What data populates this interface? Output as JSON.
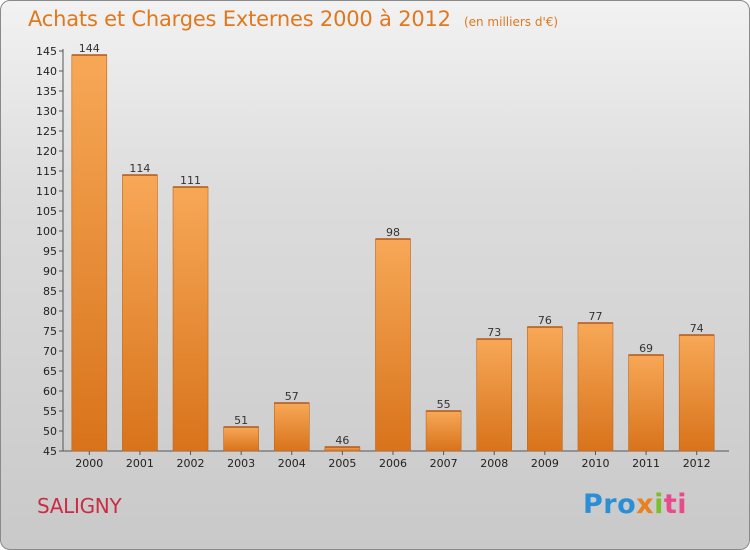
{
  "header": {
    "title": "Achats et Charges Externes 2000 à 2012",
    "subtitle": "(en milliers d'€)"
  },
  "footer": {
    "city": "SALIGNY",
    "logo_parts": [
      "Pro",
      "x",
      "i",
      "ti"
    ]
  },
  "colors": {
    "bar_light": "#f7a857",
    "bar_dark": "#d8731b",
    "title": "#e0781e",
    "city": "#cc2b44"
  },
  "chart_data": {
    "type": "bar",
    "title": "Achats et Charges Externes 2000 à 2012",
    "subtitle": "(en milliers d'€)",
    "categories": [
      "2000",
      "2001",
      "2002",
      "2003",
      "2004",
      "2005",
      "2006",
      "2007",
      "2008",
      "2009",
      "2010",
      "2011",
      "2012"
    ],
    "values": [
      144,
      114,
      111,
      51,
      57,
      46,
      98,
      55,
      73,
      76,
      77,
      69,
      74
    ],
    "ylim": [
      45,
      145
    ],
    "yticks": [
      45,
      50,
      55,
      60,
      65,
      70,
      75,
      80,
      85,
      90,
      95,
      100,
      105,
      110,
      115,
      120,
      125,
      130,
      135,
      140,
      145
    ],
    "grid": false,
    "legend": "none"
  }
}
